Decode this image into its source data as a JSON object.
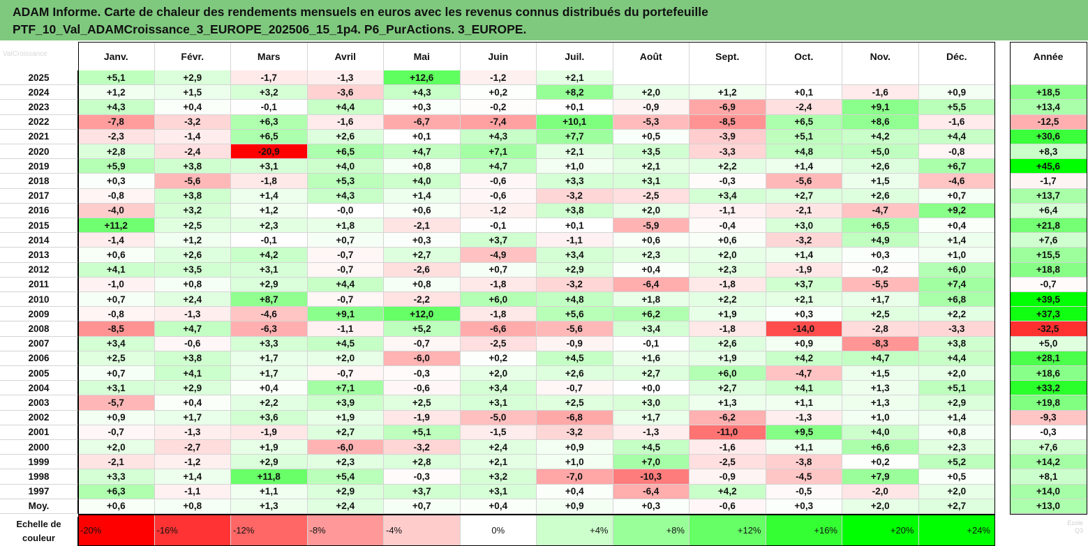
{
  "header": {
    "line1": "ADAM Informe. Carte de chaleur des rendements mensuels en euros avec les revenus connus distribués du portefeuille",
    "line2": "PTF_10_Val_ADAMCroissance_3_EUROPE_202506_15_1p4. P6_PurActions. 3_EUROPE."
  },
  "legend_label": "Echelle de couleur",
  "watermark": "ValCroissance",
  "watermark2": [
    "Ecole",
    "Q3"
  ],
  "chart_data": {
    "type": "heatmap",
    "columns": [
      "Janv.",
      "Févr.",
      "Mars",
      "Avril",
      "Mai",
      "Juin",
      "Juil.",
      "Août",
      "Sept.",
      "Oct.",
      "Nov.",
      "Déc."
    ],
    "annual_column": "Année",
    "rows": [
      {
        "year": "2025",
        "months": [
          "+5,1",
          "+2,9",
          "-1,7",
          "-1,3",
          "+12,6",
          "-1,2",
          "+2,1",
          "",
          "",
          "",
          "",
          ""
        ],
        "annual": ""
      },
      {
        "year": "2024",
        "months": [
          "+1,2",
          "+1,5",
          "+3,2",
          "-3,6",
          "+4,3",
          "+0,2",
          "+8,2",
          "+2,0",
          "+1,2",
          "+0,1",
          "-1,6",
          "+0,9"
        ],
        "annual": "+18,5"
      },
      {
        "year": "2023",
        "months": [
          "+4,3",
          "+0,4",
          "-0,1",
          "+4,4",
          "+0,3",
          "-0,2",
          "+0,1",
          "-0,9",
          "-6,9",
          "-2,4",
          "+9,1",
          "+5,5"
        ],
        "annual": "+13,4"
      },
      {
        "year": "2022",
        "months": [
          "-7,8",
          "-3,2",
          "+6,3",
          "-1,6",
          "-6,7",
          "-7,4",
          "+10,1",
          "-5,3",
          "-8,5",
          "+6,5",
          "+8,6",
          "-1,6"
        ],
        "annual": "-12,5"
      },
      {
        "year": "2021",
        "months": [
          "-2,3",
          "-1,4",
          "+6,5",
          "+2,6",
          "+0,1",
          "+4,3",
          "+7,7",
          "+0,5",
          "-3,9",
          "+5,1",
          "+4,2",
          "+4,4"
        ],
        "annual": "+30,6"
      },
      {
        "year": "2020",
        "months": [
          "+2,8",
          "-2,4",
          "-20,9",
          "+6,5",
          "+4,7",
          "+7,1",
          "+2,1",
          "+3,5",
          "-3,3",
          "+4,8",
          "+5,0",
          "-0,8"
        ],
        "annual": "+8,3"
      },
      {
        "year": "2019",
        "months": [
          "+5,9",
          "+3,8",
          "+3,1",
          "+4,0",
          "+0,8",
          "+4,7",
          "+1,0",
          "+2,1",
          "+2,2",
          "+1,4",
          "+2,6",
          "+6,7"
        ],
        "annual": "+45,6"
      },
      {
        "year": "2018",
        "months": [
          "+0,3",
          "-5,6",
          "-1,8",
          "+5,3",
          "+4,0",
          "-0,6",
          "+3,3",
          "+3,1",
          "-0,3",
          "-5,6",
          "+1,5",
          "-4,6"
        ],
        "annual": "-1,7"
      },
      {
        "year": "2017",
        "months": [
          "-0,8",
          "+3,8",
          "+1,4",
          "+4,3",
          "+1,4",
          "-0,6",
          "-3,2",
          "-2,5",
          "+3,4",
          "+2,7",
          "+2,6",
          "+0,7"
        ],
        "annual": "+13,7"
      },
      {
        "year": "2016",
        "months": [
          "-4,0",
          "+3,2",
          "+1,2",
          "-0,0",
          "+0,6",
          "-1,2",
          "+3,8",
          "+2,0",
          "-1,1",
          "-2,1",
          "-4,7",
          "+9,2"
        ],
        "annual": "+6,4"
      },
      {
        "year": "2015",
        "months": [
          "+11,2",
          "+2,5",
          "+2,3",
          "+1,8",
          "-2,1",
          "-0,1",
          "+0,1",
          "-5,9",
          "-0,4",
          "+3,0",
          "+6,5",
          "+0,4"
        ],
        "annual": "+21,8"
      },
      {
        "year": "2014",
        "months": [
          "-1,4",
          "+1,2",
          "-0,1",
          "+0,7",
          "+0,3",
          "+3,7",
          "-1,1",
          "+0,6",
          "+0,6",
          "-3,2",
          "+4,9",
          "+1,4"
        ],
        "annual": "+7,6"
      },
      {
        "year": "2013",
        "months": [
          "+0,6",
          "+2,6",
          "+4,2",
          "-0,7",
          "+2,7",
          "-4,9",
          "+3,4",
          "+2,3",
          "+2,0",
          "+1,4",
          "+0,3",
          "+1,0"
        ],
        "annual": "+15,5"
      },
      {
        "year": "2012",
        "months": [
          "+4,1",
          "+3,5",
          "+3,1",
          "-0,7",
          "-2,6",
          "+0,7",
          "+2,9",
          "+0,4",
          "+2,3",
          "-1,9",
          "-0,2",
          "+6,0"
        ],
        "annual": "+18,8"
      },
      {
        "year": "2011",
        "months": [
          "-1,0",
          "+0,8",
          "+2,9",
          "+4,4",
          "+0,8",
          "-1,8",
          "-3,2",
          "-6,4",
          "-1,8",
          "+3,7",
          "-5,5",
          "+7,4"
        ],
        "annual": "-0,7"
      },
      {
        "year": "2010",
        "months": [
          "+0,7",
          "+2,4",
          "+8,7",
          "-0,7",
          "-2,2",
          "+6,0",
          "+4,8",
          "+1,8",
          "+2,2",
          "+2,1",
          "+1,7",
          "+6,8"
        ],
        "annual": "+39,5"
      },
      {
        "year": "2009",
        "months": [
          "-0,8",
          "-1,3",
          "-4,6",
          "+9,1",
          "+12,0",
          "-1,8",
          "+5,6",
          "+6,2",
          "+1,9",
          "+0,3",
          "+2,5",
          "+2,2"
        ],
        "annual": "+37,3"
      },
      {
        "year": "2008",
        "months": [
          "-8,5",
          "+4,7",
          "-6,3",
          "-1,1",
          "+5,2",
          "-6,6",
          "-5,6",
          "+3,4",
          "-1,8",
          "-14,0",
          "-2,8",
          "-3,3"
        ],
        "annual": "-32,5"
      },
      {
        "year": "2007",
        "months": [
          "+3,4",
          "-0,6",
          "+3,3",
          "+4,5",
          "-0,7",
          "-2,5",
          "-0,9",
          "-0,1",
          "+2,6",
          "+0,9",
          "-8,3",
          "+3,8"
        ],
        "annual": "+5,0"
      },
      {
        "year": "2006",
        "months": [
          "+2,5",
          "+3,8",
          "+1,7",
          "+2,0",
          "-6,0",
          "+0,2",
          "+4,5",
          "+1,6",
          "+1,9",
          "+4,2",
          "+4,7",
          "+4,4"
        ],
        "annual": "+28,1"
      },
      {
        "year": "2005",
        "months": [
          "+0,7",
          "+4,1",
          "+1,7",
          "-0,7",
          "-0,3",
          "+2,0",
          "+2,6",
          "+2,7",
          "+6,0",
          "-4,7",
          "+1,5",
          "+2,0"
        ],
        "annual": "+18,6"
      },
      {
        "year": "2004",
        "months": [
          "+3,1",
          "+2,9",
          "+0,4",
          "+7,1",
          "-0,6",
          "+3,4",
          "-0,7",
          "+0,0",
          "+2,7",
          "+4,1",
          "+1,3",
          "+5,1"
        ],
        "annual": "+33,2"
      },
      {
        "year": "2003",
        "months": [
          "-5,7",
          "+0,4",
          "+2,2",
          "+3,9",
          "+2,5",
          "+3,1",
          "+2,5",
          "+3,0",
          "+1,3",
          "+1,1",
          "+1,3",
          "+2,9"
        ],
        "annual": "+19,8"
      },
      {
        "year": "2002",
        "months": [
          "+0,9",
          "+1,7",
          "+3,6",
          "+1,9",
          "-1,9",
          "-5,0",
          "-6,8",
          "+1,7",
          "-6,2",
          "-1,3",
          "+1,0",
          "+1,4"
        ],
        "annual": "-9,3"
      },
      {
        "year": "2001",
        "months": [
          "-0,7",
          "-1,3",
          "-1,9",
          "+2,7",
          "+5,1",
          "-1,5",
          "-3,2",
          "-1,3",
          "-11,0",
          "+9,5",
          "+4,0",
          "+0,8"
        ],
        "annual": "-0,3"
      },
      {
        "year": "2000",
        "months": [
          "+2,0",
          "-2,7",
          "+1,9",
          "-6,0",
          "-3,2",
          "+2,4",
          "+0,9",
          "+4,5",
          "-1,6",
          "+1,1",
          "+6,6",
          "+2,3"
        ],
        "annual": "+7,6"
      },
      {
        "year": "1999",
        "months": [
          "-2,1",
          "-1,2",
          "+2,9",
          "+2,3",
          "+2,8",
          "+2,1",
          "+1,0",
          "+7,0",
          "-2,5",
          "-3,8",
          "+0,2",
          "+5,2"
        ],
        "annual": "+14,2"
      },
      {
        "year": "1998",
        "months": [
          "+3,3",
          "+1,4",
          "+11,8",
          "+5,4",
          "-0,3",
          "+3,2",
          "-7,0",
          "-10,3",
          "-0,9",
          "-4,5",
          "+7,9",
          "+0,5"
        ],
        "annual": "+8,1"
      },
      {
        "year": "1997",
        "months": [
          "+6,3",
          "-1,1",
          "+1,1",
          "+2,9",
          "+3,7",
          "+3,1",
          "+0,4",
          "-6,4",
          "+4,2",
          "-0,5",
          "-2,0",
          "+2,0"
        ],
        "annual": "+14,0"
      },
      {
        "year": "Moy.",
        "months": [
          "+0,6",
          "+0,8",
          "+1,3",
          "+2,4",
          "+0,7",
          "+0,4",
          "+0,9",
          "+0,3",
          "-0,6",
          "+0,3",
          "+2,0",
          "+2,7"
        ],
        "annual": "+13,0"
      }
    ],
    "scale": [
      "-20%",
      "-16%",
      "-12%",
      "-8%",
      "-4%",
      "0%",
      "+4%",
      "+8%",
      "+12%",
      "+16%",
      "+20%",
      "+24%"
    ],
    "colors": {
      "negative": "#ff0000",
      "positive": "#00ff00",
      "neutral": "#ffffff"
    }
  }
}
